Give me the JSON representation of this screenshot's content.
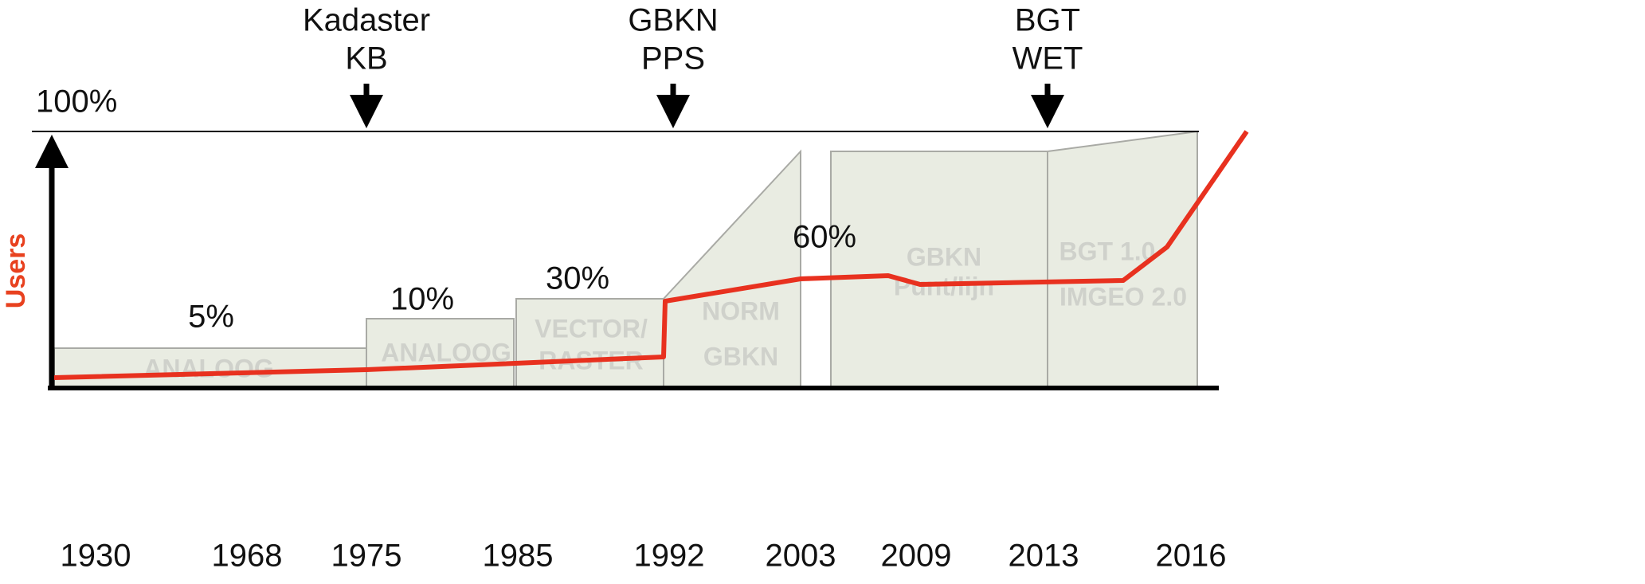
{
  "axis_label": "Users",
  "max_label": "100%",
  "years": [
    "1930",
    "1968",
    "1975",
    "1985",
    "1992",
    "2003",
    "2009",
    "2013",
    "2016"
  ],
  "events": [
    {
      "lines": [
        "Kadaster",
        "KB"
      ]
    },
    {
      "lines": [
        "GBKN",
        "PPS"
      ]
    },
    {
      "lines": [
        "BGT",
        "WET"
      ]
    }
  ],
  "phases": [
    {
      "lines": [
        "ANALOOG"
      ]
    },
    {
      "lines": [
        "ANALOOG"
      ]
    },
    {
      "lines": [
        "VECTOR/",
        "RASTER"
      ]
    },
    {
      "lines": [
        "NORM",
        "GBKN"
      ]
    },
    {
      "lines": [
        "GBKN",
        "Punt/lijn"
      ]
    },
    {
      "lines": [
        "BGT 1.0",
        "IMGEO 2.0"
      ]
    }
  ],
  "shares": [
    "5%",
    "10%",
    "30%",
    "60%"
  ]
}
